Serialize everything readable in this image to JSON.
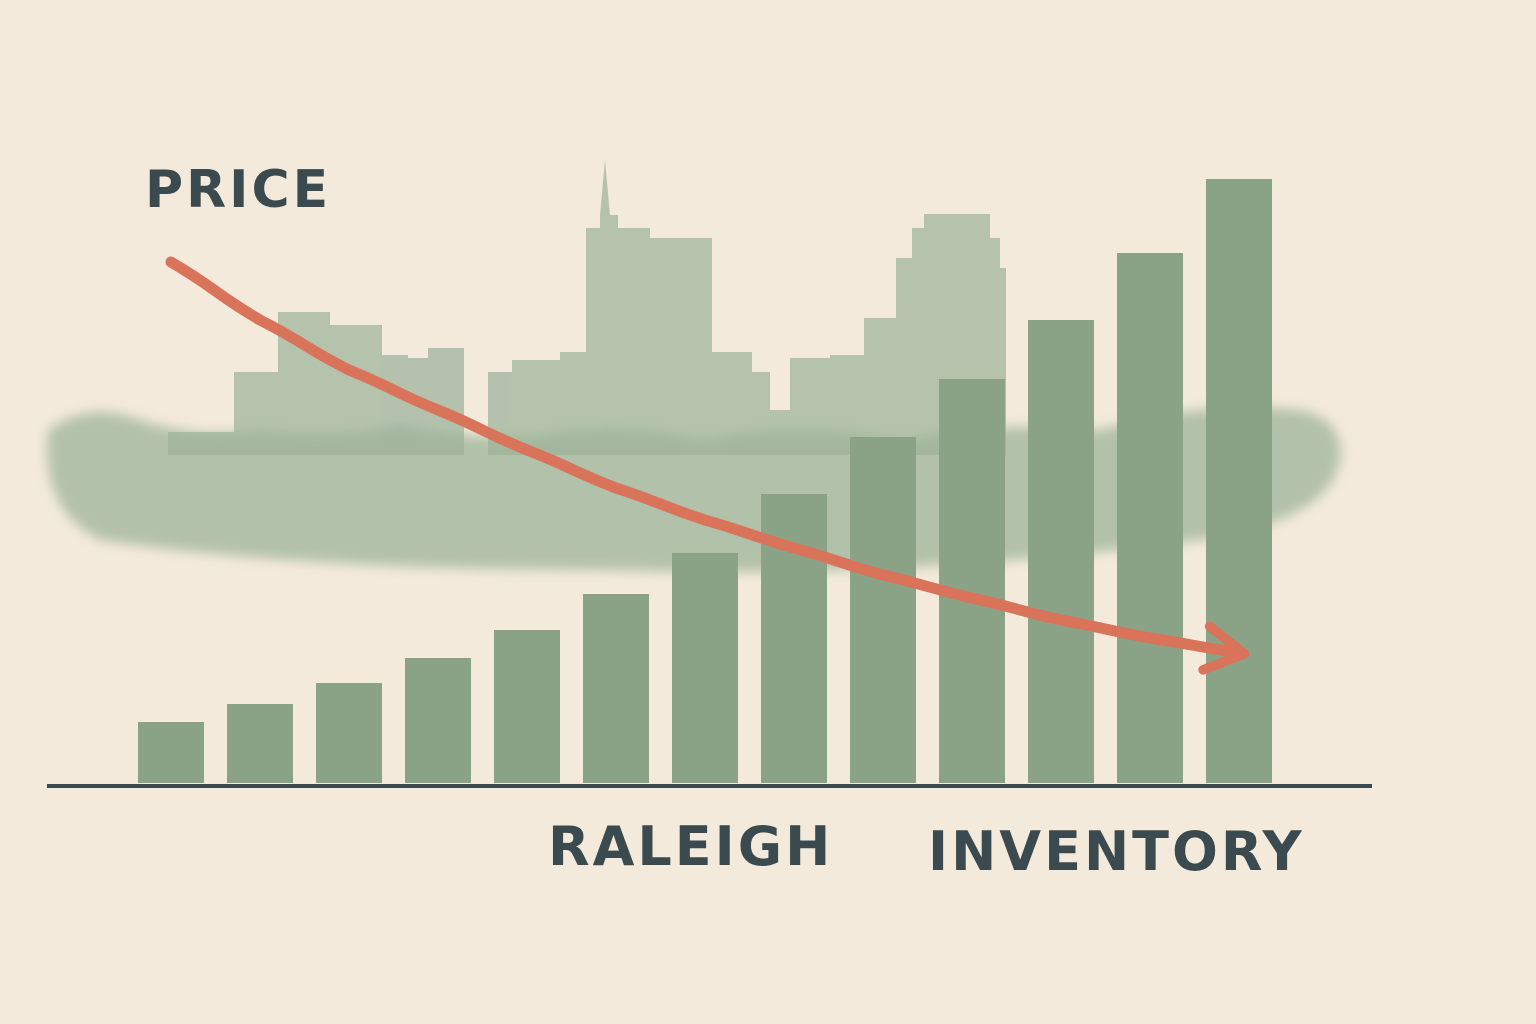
{
  "chart_data": {
    "type": "bar",
    "annotation": "RALEIGH",
    "categories": [
      null,
      null,
      null,
      null,
      null,
      null,
      null,
      null,
      null,
      null,
      null,
      null,
      null
    ],
    "series": [
      {
        "name": "INVENTORY",
        "color": "#8aa387",
        "values": [
          61,
          79,
          100,
          125,
          153,
          189,
          230,
          289,
          346,
          404,
          463,
          530,
          604
        ]
      },
      {
        "name": "PRICE",
        "color": "#d9735a",
        "type": "line",
        "axis": "y2",
        "values": [
          521,
          463,
          413,
          373,
          333,
          295,
          263,
          235,
          208,
          185,
          163,
          145,
          130
        ]
      }
    ],
    "ylim": [
      0,
      700
    ],
    "y2lim": [
      0,
      700
    ],
    "grid": false
  }
}
